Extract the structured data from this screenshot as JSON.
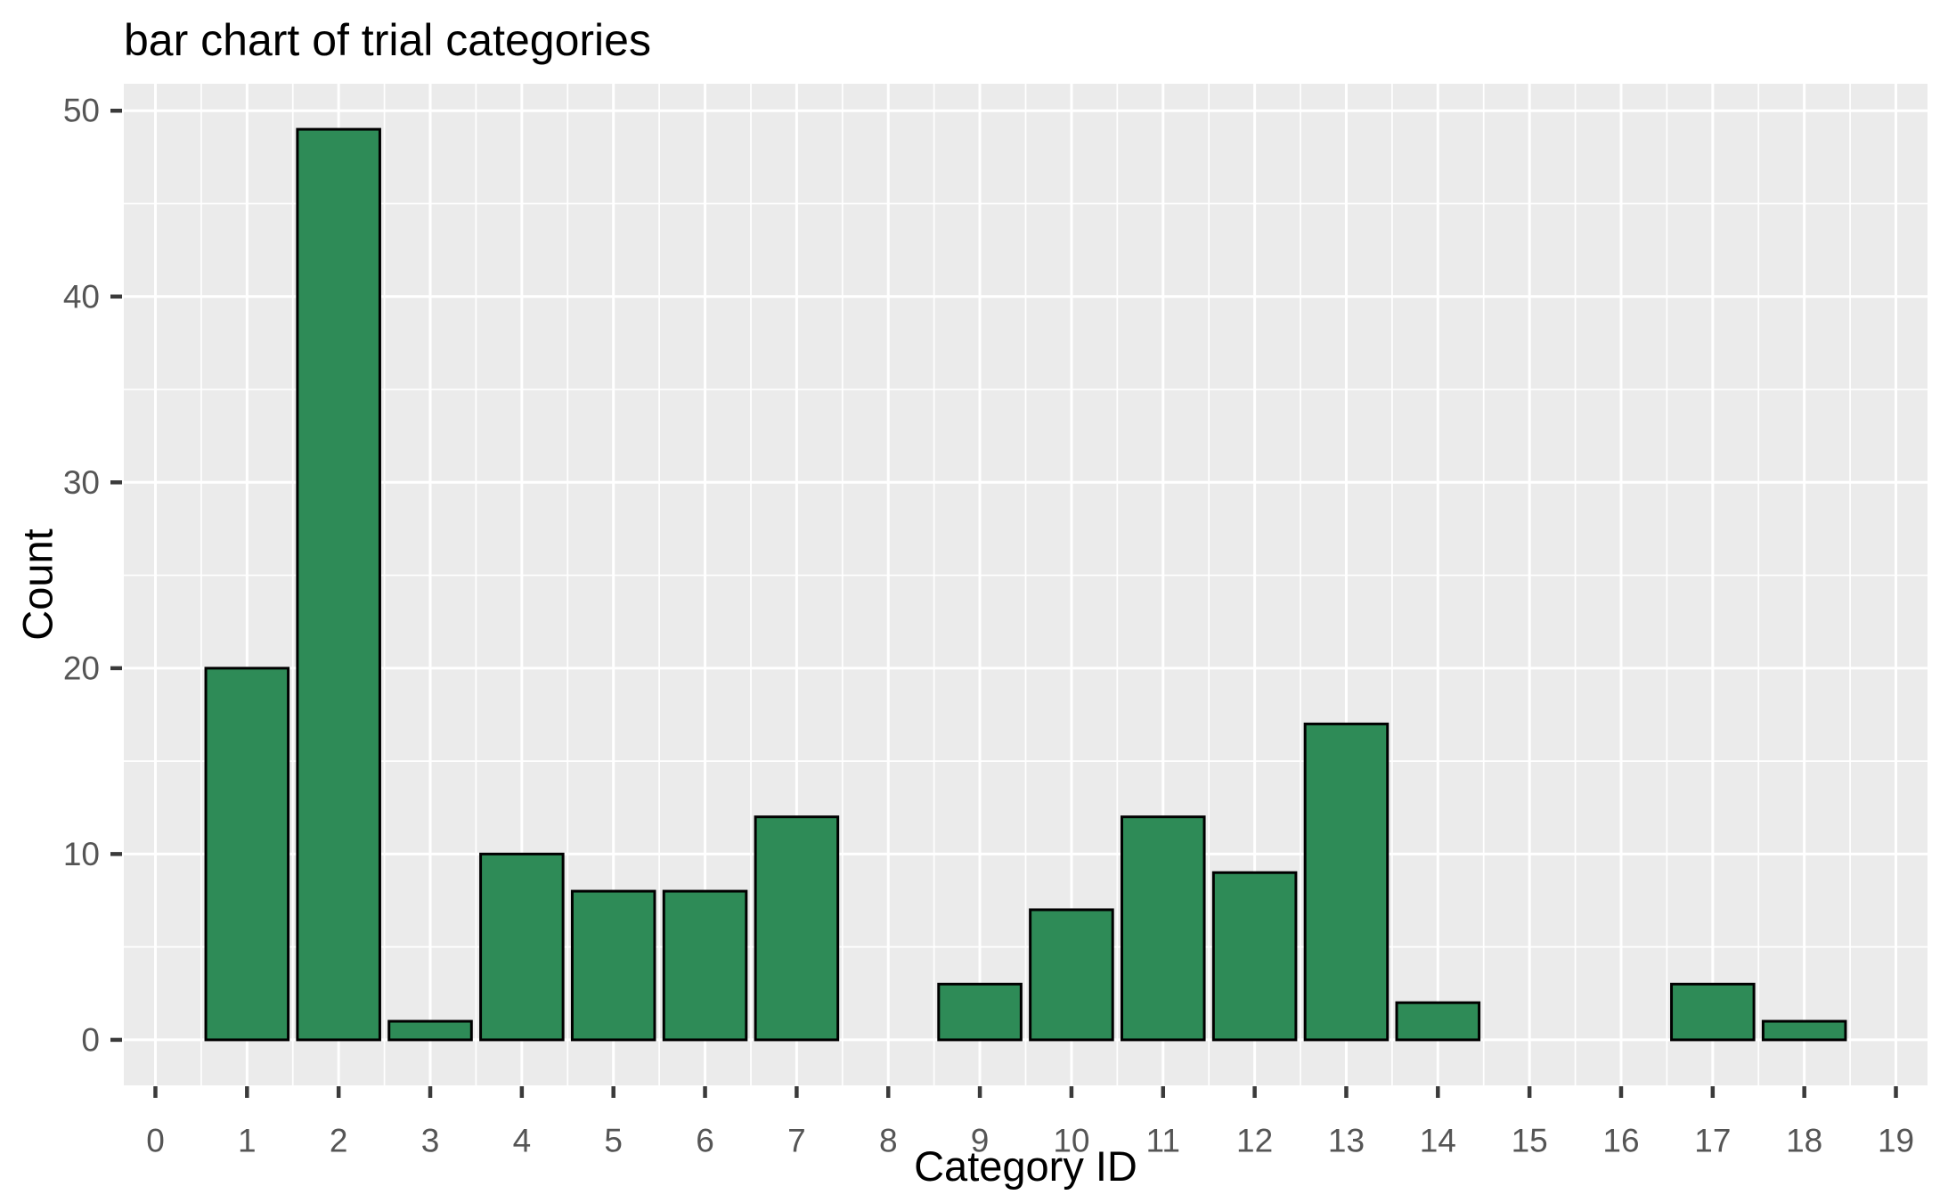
{
  "chart_data": {
    "type": "bar",
    "title": "bar chart of trial categories",
    "xlabel": "Category ID",
    "ylabel": "Count",
    "categories": [
      0,
      1,
      2,
      3,
      4,
      5,
      6,
      7,
      8,
      9,
      10,
      11,
      12,
      13,
      14,
      15,
      16,
      17,
      18,
      19
    ],
    "values": [
      0,
      20,
      49,
      1,
      10,
      8,
      8,
      12,
      0,
      3,
      7,
      12,
      9,
      17,
      2,
      0,
      0,
      3,
      1,
      0
    ],
    "x_ticks": [
      0,
      1,
      2,
      3,
      4,
      5,
      6,
      7,
      8,
      9,
      10,
      11,
      12,
      13,
      14,
      15,
      16,
      17,
      18,
      19
    ],
    "y_ticks": [
      0,
      10,
      20,
      30,
      40,
      50
    ],
    "y_minor_ticks": [
      5,
      15,
      25,
      35,
      45
    ],
    "xlim": [
      -0.345,
      19.345
    ],
    "ylim": [
      -2.45,
      51.45
    ],
    "bar_width": 0.9,
    "grid": true,
    "legend": null,
    "colors": {
      "bar_fill": "#2E8B57",
      "bar_edge": "#000000",
      "panel_bg": "#EBEBEB",
      "grid_major": "#FFFFFF",
      "grid_minor": "#FFFFFF",
      "tick_mark": "#3A3A3A",
      "tick_label": "#555555",
      "axis_label": "#000000",
      "title_color": "#000000",
      "figure_bg": "#FFFFFF"
    }
  }
}
